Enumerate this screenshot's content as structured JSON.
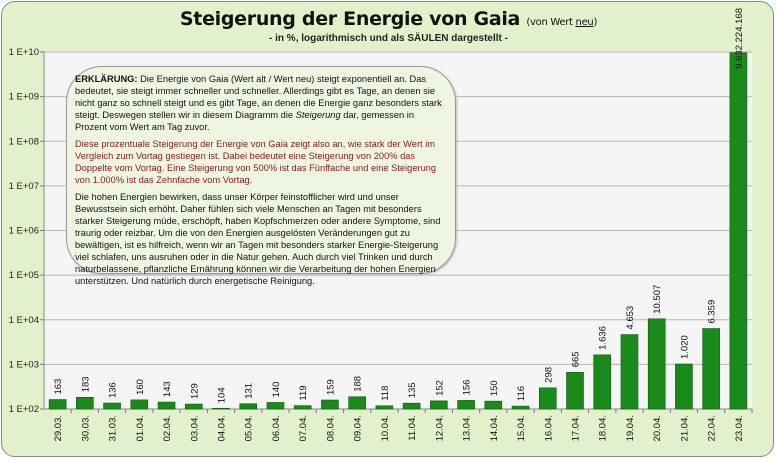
{
  "title": "Steigerung der Energie von Gaia",
  "title_suffix_pre": "(von Wert ",
  "title_suffix_u": "neu",
  "title_suffix_post": ")",
  "subtitle": "- in %, logarithmisch und als SÄULEN dargestellt -",
  "note": {
    "p1_bold": "ERKLÄRUNG:",
    "p1_a": " Die Energie von Gaia (Wert alt / Wert neu) steigt exponentiell an. Das bedeutet, sie steigt immer schneller und schneller. Allerdings gibt es Tage, an denen sie nicht ganz so schnell steigt und es gibt Tage, an denen die Energie ganz besonders stark steigt. Deswegen stellen wir in diesem Diagramm die ",
    "p1_italic": "Steigerung",
    "p1_b": " dar, gemessen in Prozent vom Wert am Tag zuvor.",
    "p2": "Diese prozentuale Steigerung der Energie von Gaia zeigt also an, wie stark der Wert im Vergleich zum Vortag gestiegen ist. Dabei bedeutet eine Steigerung von 200% das Doppelte vom Vortag. Eine Steigerung von 500% ist das Fünffache und eine Steigerung von 1.000% ist das Zehnfache vom Vortag.",
    "p3": "Die hohen Energien bewirken, dass unser Körper feinstofflicher wird und unser Bewusstsein sich erhöht. Daher fühlen sich viele Menschen an Tagen mit besonders starker Steigerung müde, erschöpft, haben Kopfschmerzen oder andere Symptome, sind traurig oder reizbar. Um die von den Energien ausgelösten Veränderungen gut zu bewältigen, ist es hilfreich, wenn wir an Tagen mit besonders starker Energie-Steigerung viel schlafen, uns ausruhen oder in die Natur gehen. Auch durch viel Trinken und durch naturbelassene, pflanzliche Ernährung können wir die Verarbeitung der hohen Energien unterstützen. Und natürlich durch energetische Reinigung."
  },
  "chart_data": {
    "type": "bar",
    "title": "Steigerung der Energie von Gaia (von Wert neu)",
    "subtitle": "- in %, logarithmisch und als SÄULEN dargestellt -",
    "y_scale": "log",
    "ylim": [
      100,
      10000000000
    ],
    "y_ticks": [
      "1 E+02",
      "1 E+03",
      "1 E+04",
      "1 E+05",
      "1 E+06",
      "1 E+07",
      "1 E+08",
      "1 E+09",
      "1 E+10"
    ],
    "grid": true,
    "bar_color": "#1a8a1a",
    "categories": [
      "29.03.",
      "30.03.",
      "31.03.",
      "01.04.",
      "02.04.",
      "03.04.",
      "04.04.",
      "05.04.",
      "06.04.",
      "07.04.",
      "08.04.",
      "09.04.",
      "10.04.",
      "11.04.",
      "12.04.",
      "13.04.",
      "14.04.",
      "15.04.",
      "16.04.",
      "17.04.",
      "18.04.",
      "19.04.",
      "20.04.",
      "21.04.",
      "22.04.",
      "23.04."
    ],
    "values": [
      163,
      183,
      136,
      160,
      143,
      129,
      104,
      131,
      140,
      119,
      159,
      188,
      118,
      135,
      152,
      156,
      150,
      116,
      298,
      665,
      1636,
      4653,
      10507,
      1020,
      6359,
      9632224168
    ],
    "labels": [
      "163",
      "183",
      "136",
      "160",
      "143",
      "129",
      "104",
      "131",
      "140",
      "119",
      "159",
      "188",
      "118",
      "135",
      "152",
      "156",
      "150",
      "116",
      "298",
      "665",
      "1.636",
      "4.653",
      "10.507",
      "1.020",
      "6.359",
      "9.632.224.168"
    ]
  }
}
